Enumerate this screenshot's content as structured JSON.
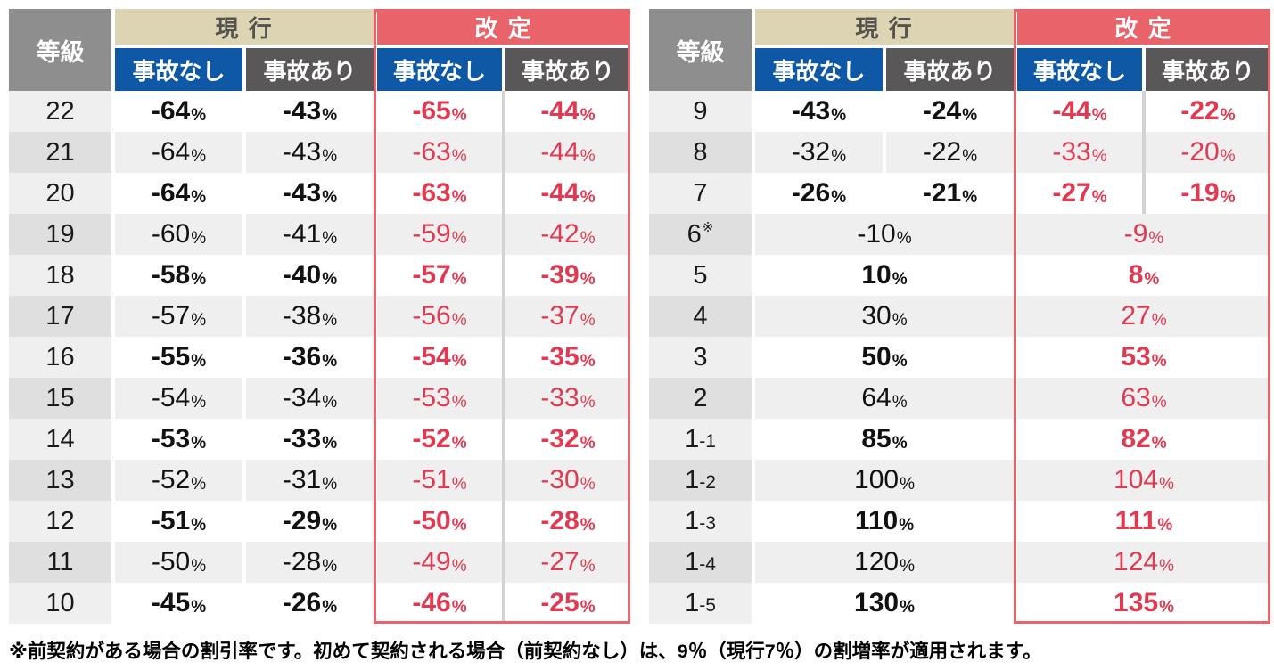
{
  "header_labels": {
    "grade": "等級",
    "current": "現 行",
    "revised": "改 定",
    "no_accident": "事故なし",
    "with_accident": "事故あり"
  },
  "percent_symbol": "%",
  "colors": {
    "grade_header_bg": "#8e8e8e",
    "current_header_bg": "#ddd4b4",
    "current_header_text": "#56534e",
    "revised_accent": "#e9636b",
    "no_accident_bg": "#0f58a6",
    "with_accident_bg": "#595757",
    "revised_value_text": "#e03a52",
    "stripe_data": "#efefef",
    "stripe_grade": "#dfdfdf"
  },
  "left_table": {
    "rows": [
      {
        "grade": "22",
        "cur_no": "-64",
        "cur_acc": "-43",
        "rev_no": "-65",
        "rev_acc": "-44"
      },
      {
        "grade": "21",
        "cur_no": "-64",
        "cur_acc": "-43",
        "rev_no": "-63",
        "rev_acc": "-44"
      },
      {
        "grade": "20",
        "cur_no": "-64",
        "cur_acc": "-43",
        "rev_no": "-63",
        "rev_acc": "-44"
      },
      {
        "grade": "19",
        "cur_no": "-60",
        "cur_acc": "-41",
        "rev_no": "-59",
        "rev_acc": "-42"
      },
      {
        "grade": "18",
        "cur_no": "-58",
        "cur_acc": "-40",
        "rev_no": "-57",
        "rev_acc": "-39"
      },
      {
        "grade": "17",
        "cur_no": "-57",
        "cur_acc": "-38",
        "rev_no": "-56",
        "rev_acc": "-37"
      },
      {
        "grade": "16",
        "cur_no": "-55",
        "cur_acc": "-36",
        "rev_no": "-54",
        "rev_acc": "-35"
      },
      {
        "grade": "15",
        "cur_no": "-54",
        "cur_acc": "-34",
        "rev_no": "-53",
        "rev_acc": "-33"
      },
      {
        "grade": "14",
        "cur_no": "-53",
        "cur_acc": "-33",
        "rev_no": "-52",
        "rev_acc": "-32"
      },
      {
        "grade": "13",
        "cur_no": "-52",
        "cur_acc": "-31",
        "rev_no": "-51",
        "rev_acc": "-30"
      },
      {
        "grade": "12",
        "cur_no": "-51",
        "cur_acc": "-29",
        "rev_no": "-50",
        "rev_acc": "-28"
      },
      {
        "grade": "11",
        "cur_no": "-50",
        "cur_acc": "-28",
        "rev_no": "-49",
        "rev_acc": "-27"
      },
      {
        "grade": "10",
        "cur_no": "-45",
        "cur_acc": "-26",
        "rev_no": "-46",
        "rev_acc": "-25"
      }
    ]
  },
  "right_table": {
    "rows": [
      {
        "grade": "9",
        "cur_no": "-43",
        "cur_acc": "-24",
        "rev_no": "-44",
        "rev_acc": "-22"
      },
      {
        "grade": "8",
        "cur_no": "-32",
        "cur_acc": "-22",
        "rev_no": "-33",
        "rev_acc": "-20"
      },
      {
        "grade": "7",
        "cur_no": "-26",
        "cur_acc": "-21",
        "rev_no": "-27",
        "rev_acc": "-19"
      },
      {
        "grade": "6",
        "note": "※",
        "merged": true,
        "cur": "-10",
        "rev": "-9"
      },
      {
        "grade": "5",
        "merged": true,
        "cur": "10",
        "rev": "8"
      },
      {
        "grade": "4",
        "merged": true,
        "cur": "30",
        "rev": "27"
      },
      {
        "grade": "3",
        "merged": true,
        "cur": "50",
        "rev": "53"
      },
      {
        "grade": "2",
        "merged": true,
        "cur": "64",
        "rev": "63"
      },
      {
        "grade": "1-1",
        "merged": true,
        "cur": "85",
        "rev": "82"
      },
      {
        "grade": "1-2",
        "merged": true,
        "cur": "100",
        "rev": "104"
      },
      {
        "grade": "1-3",
        "merged": true,
        "cur": "110",
        "rev": "111"
      },
      {
        "grade": "1-4",
        "merged": true,
        "cur": "120",
        "rev": "124"
      },
      {
        "grade": "1-5",
        "merged": true,
        "cur": "130",
        "rev": "135"
      }
    ]
  },
  "footnote": "※前契約がある場合の割引率です。初めて契約される場合（前契約なし）は、9％（現行7％）の割増率が適用されます。"
}
